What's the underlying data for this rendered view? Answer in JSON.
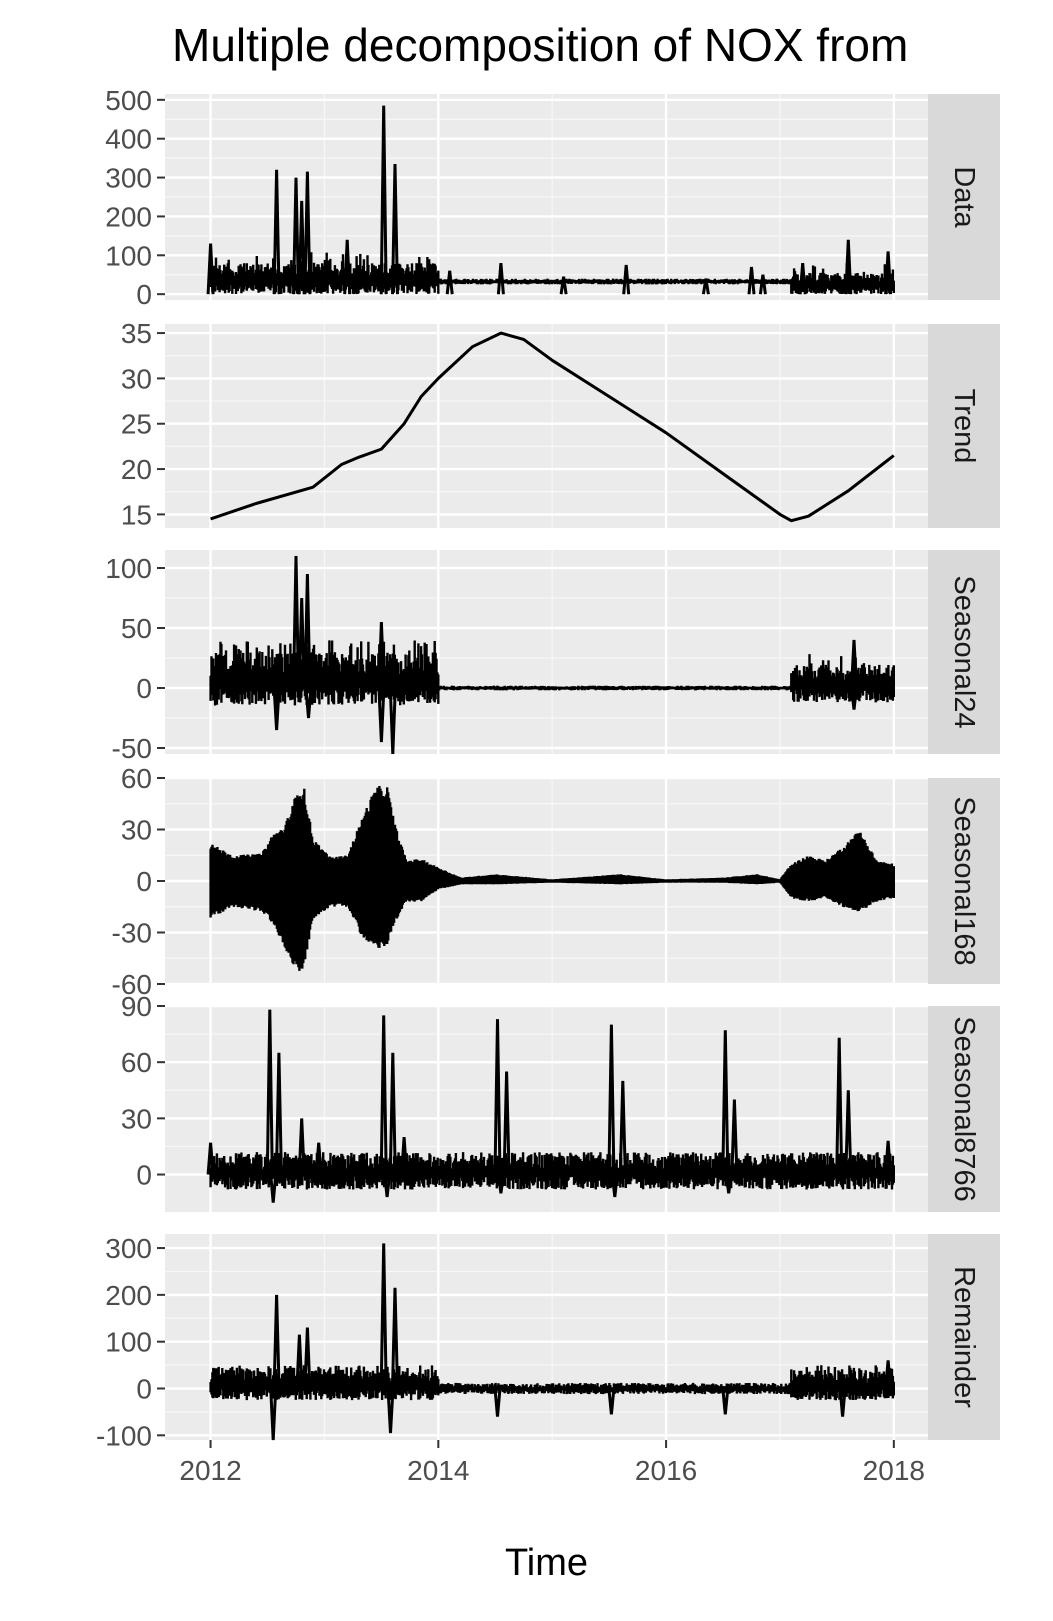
{
  "chart_data": {
    "type": "line",
    "title": "Multiple decomposition of  NOX from",
    "xlabel": "Time",
    "x_ticks": [
      "2012",
      "2014",
      "2016",
      "2018"
    ],
    "xlim": [
      2011.6,
      2018.3
    ],
    "grid": true,
    "panels": [
      {
        "name": "Data",
        "ylim": [
          -15,
          515
        ],
        "y_ticks": [
          0,
          100,
          200,
          300,
          400,
          500
        ],
        "y_tick_labels": [
          "0",
          "100",
          "200",
          "300",
          "400",
          "500"
        ],
        "band_segments": [
          [
            2012.0,
            2014.0,
            0,
            80,
            110
          ],
          [
            2014.0,
            2017.1,
            25,
            40,
            0
          ],
          [
            2017.1,
            2018.0,
            0,
            55,
            80
          ]
        ],
        "spikes": [
          [
            2012.0,
            130
          ],
          [
            2012.58,
            320
          ],
          [
            2012.75,
            300
          ],
          [
            2012.8,
            240
          ],
          [
            2012.85,
            315
          ],
          [
            2013.2,
            140
          ],
          [
            2013.52,
            485
          ],
          [
            2013.62,
            335
          ],
          [
            2014.1,
            60
          ],
          [
            2014.55,
            80
          ],
          [
            2015.1,
            45
          ],
          [
            2015.65,
            75
          ],
          [
            2016.35,
            40
          ],
          [
            2016.75,
            70
          ],
          [
            2016.85,
            50
          ],
          [
            2017.2,
            80
          ],
          [
            2017.6,
            140
          ],
          [
            2017.95,
            110
          ]
        ]
      },
      {
        "name": "Trend",
        "ylim": [
          13.5,
          36
        ],
        "y_ticks": [
          15,
          20,
          25,
          30,
          35
        ],
        "y_tick_labels": [
          "15",
          "20",
          "25",
          "30",
          "35"
        ],
        "x": [
          2012.0,
          2012.4,
          2012.9,
          2013.15,
          2013.3,
          2013.5,
          2013.7,
          2013.85,
          2014.0,
          2014.3,
          2014.55,
          2014.75,
          2015.0,
          2015.5,
          2016.0,
          2016.5,
          2017.0,
          2017.1,
          2017.25,
          2017.6,
          2018.0
        ],
        "values": [
          14.5,
          16.2,
          18.0,
          20.5,
          21.3,
          22.2,
          25.0,
          28.0,
          30.0,
          33.5,
          35.0,
          34.3,
          32.0,
          28.0,
          24.0,
          19.5,
          15.0,
          14.3,
          14.8,
          17.6,
          21.5
        ]
      },
      {
        "name": "Seasonal24",
        "ylim": [
          -55,
          115
        ],
        "y_ticks": [
          -50,
          0,
          50,
          100
        ],
        "y_tick_labels": [
          "-50",
          "0",
          "50",
          "100"
        ],
        "band_segments": [
          [
            2012.0,
            2014.0,
            -15,
            30,
            40
          ],
          [
            2014.0,
            2017.1,
            -2,
            2,
            0
          ],
          [
            2017.1,
            2018.0,
            -12,
            20,
            30
          ]
        ],
        "spikes": [
          [
            2012.58,
            -35
          ],
          [
            2012.75,
            110
          ],
          [
            2012.8,
            75
          ],
          [
            2012.85,
            95
          ],
          [
            2012.86,
            -25
          ],
          [
            2013.5,
            55
          ],
          [
            2013.5,
            -45
          ],
          [
            2013.6,
            -55
          ],
          [
            2017.65,
            40
          ],
          [
            2017.65,
            -18
          ]
        ]
      },
      {
        "name": "Seasonal168",
        "ylim": [
          -60,
          60
        ],
        "y_ticks": [
          -60,
          -30,
          0,
          30,
          60
        ],
        "y_tick_labels": [
          "-60",
          "-30",
          "0",
          "30",
          "60"
        ],
        "envelope": {
          "x": [
            2012.0,
            2012.2,
            2012.45,
            2012.55,
            2012.65,
            2012.78,
            2012.82,
            2012.9,
            2013.05,
            2013.2,
            2013.35,
            2013.45,
            2013.55,
            2013.62,
            2013.72,
            2013.85,
            2014.0,
            2014.2,
            2014.5,
            2015.0,
            2015.6,
            2016.0,
            2016.5,
            2016.8,
            2017.0,
            2017.1,
            2017.25,
            2017.4,
            2017.55,
            2017.7,
            2017.85,
            2018.0
          ],
          "upper": [
            22,
            15,
            16,
            28,
            32,
            56,
            55,
            25,
            14,
            15,
            40,
            55,
            56,
            33,
            12,
            13,
            8,
            2,
            4,
            1,
            4,
            1,
            2,
            4,
            1,
            10,
            15,
            12,
            20,
            30,
            12,
            10
          ],
          "lower": [
            -22,
            -15,
            -18,
            -25,
            -40,
            -55,
            -52,
            -22,
            -15,
            -15,
            -35,
            -40,
            -38,
            -25,
            -12,
            -12,
            -5,
            -2,
            -2,
            -1,
            -2,
            -1,
            -1,
            -2,
            -1,
            -10,
            -12,
            -10,
            -15,
            -18,
            -12,
            -10
          ]
        }
      },
      {
        "name": "Seasonal8766",
        "ylim": [
          -20,
          90
        ],
        "y_ticks": [
          0,
          30,
          60,
          90
        ],
        "y_tick_labels": [
          "0",
          "30",
          "60",
          "90"
        ],
        "band_segments": [
          [
            2012.0,
            2018.0,
            -8,
            12,
            0
          ]
        ],
        "spikes": [
          [
            2012.0,
            17
          ],
          [
            2012.52,
            88
          ],
          [
            2012.6,
            65
          ],
          [
            2012.8,
            30
          ],
          [
            2012.95,
            17
          ],
          [
            2013.52,
            85
          ],
          [
            2013.6,
            65
          ],
          [
            2013.7,
            20
          ],
          [
            2014.52,
            83
          ],
          [
            2014.6,
            55
          ],
          [
            2015.52,
            80
          ],
          [
            2015.62,
            50
          ],
          [
            2016.52,
            77
          ],
          [
            2016.6,
            40
          ],
          [
            2017.52,
            73
          ],
          [
            2017.6,
            45
          ],
          [
            2017.95,
            18
          ],
          [
            2012.55,
            -15
          ],
          [
            2013.55,
            -12
          ],
          [
            2014.55,
            -10
          ],
          [
            2015.55,
            -12
          ],
          [
            2016.55,
            -10
          ]
        ]
      },
      {
        "name": "Remainder",
        "ylim": [
          -110,
          330
        ],
        "y_ticks": [
          -100,
          0,
          100,
          200,
          300
        ],
        "y_tick_labels": [
          "-100",
          "0",
          "100",
          "200",
          "300"
        ],
        "band_segments": [
          [
            2012.0,
            2014.0,
            -25,
            45,
            50
          ],
          [
            2014.0,
            2017.1,
            -12,
            12,
            0
          ],
          [
            2017.1,
            2018.0,
            -25,
            40,
            50
          ]
        ],
        "spikes": [
          [
            2012.55,
            -110
          ],
          [
            2012.58,
            200
          ],
          [
            2012.78,
            115
          ],
          [
            2012.85,
            130
          ],
          [
            2013.52,
            310
          ],
          [
            2013.62,
            215
          ],
          [
            2013.58,
            -95
          ],
          [
            2014.52,
            -60
          ],
          [
            2015.52,
            -55
          ],
          [
            2016.52,
            -55
          ],
          [
            2017.55,
            -60
          ],
          [
            2017.95,
            60
          ]
        ]
      }
    ]
  }
}
